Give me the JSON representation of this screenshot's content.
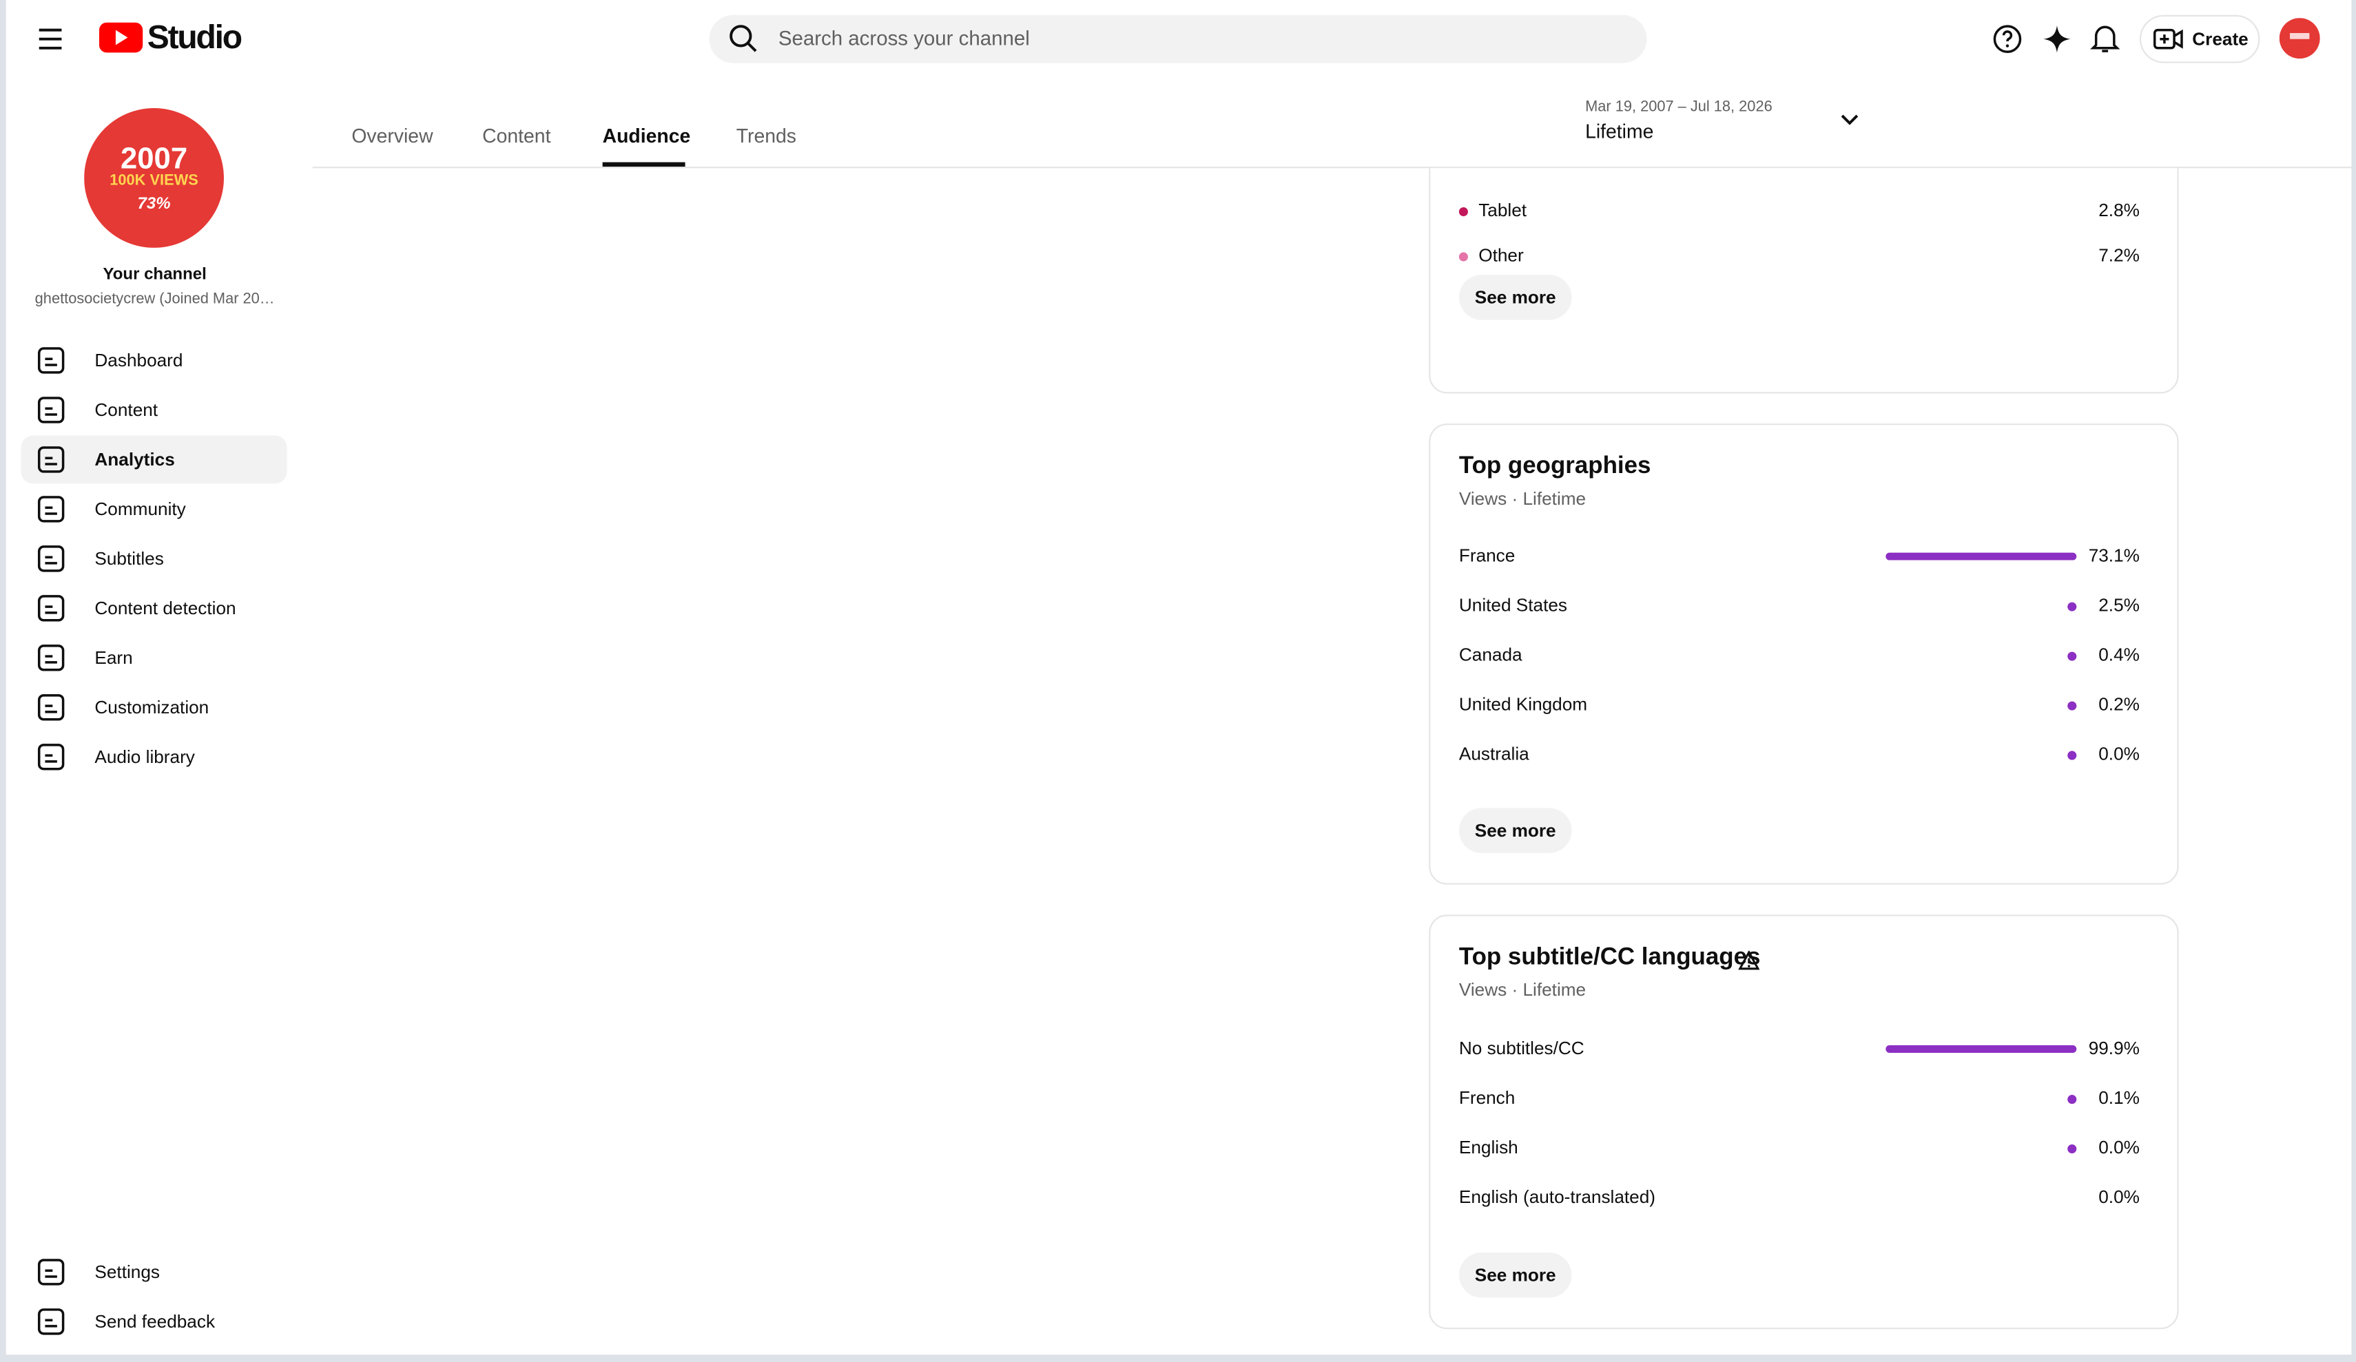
{
  "header": {
    "logo": "Studio",
    "search_placeholder": "Search across your channel",
    "create": "Create"
  },
  "sidebar": {
    "avatar": {
      "year": "2007",
      "views": "100K VIEWS",
      "share": "73%"
    },
    "channel_title": "Your channel",
    "channel_handle": "ghettosocietycrew (Joined Mar 20…",
    "nav": [
      "Dashboard",
      "Content",
      "Analytics",
      "Community",
      "Subtitles",
      "Content detection",
      "Earn",
      "Customization",
      "Audio library"
    ],
    "footer": [
      "Settings",
      "Send feedback"
    ]
  },
  "tabs": [
    "Overview",
    "Content",
    "Audience",
    "Trends"
  ],
  "date_range": {
    "dates": "Mar 19, 2007 – Jul 18, 2026",
    "label": "Lifetime"
  },
  "device_card": {
    "rows": [
      [
        "Tablet",
        "2.8%"
      ],
      [
        "Other",
        "7.2%"
      ]
    ],
    "see_more": "See more"
  },
  "geographies_card": {
    "title": "Top geographies",
    "subtitle": "Views · Lifetime",
    "rows": [
      [
        "France",
        "73.1%"
      ],
      [
        "United States",
        "2.5%"
      ],
      [
        "Canada",
        "0.4%"
      ],
      [
        "United Kingdom",
        "0.2%"
      ],
      [
        "Australia",
        "0.0%"
      ]
    ],
    "see_more": "See more"
  },
  "subtitles_card": {
    "title": "Top subtitle/CC languages",
    "subtitle": "Views · Lifetime",
    "rows": [
      [
        "No subtitles/CC",
        "99.9%"
      ],
      [
        "French",
        "0.1%"
      ],
      [
        "English",
        "0.0%"
      ],
      [
        "English (auto-translated)",
        "0.0%"
      ]
    ],
    "see_more": "See more"
  }
}
